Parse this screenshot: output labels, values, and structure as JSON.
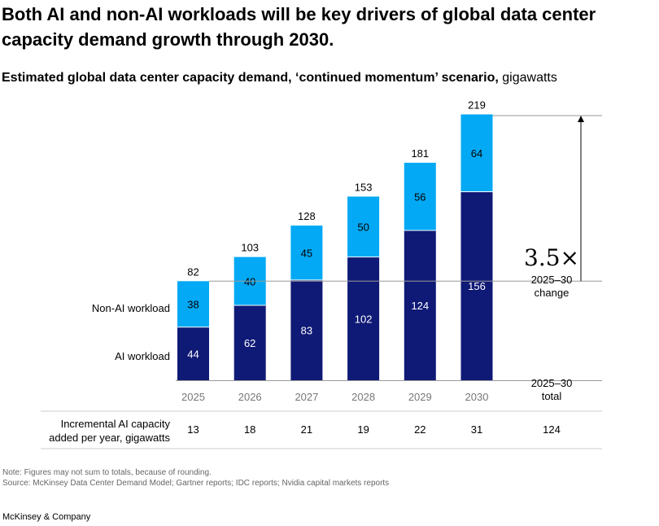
{
  "headline": "Both AI and non-AI workloads will be key drivers of global data center capacity demand growth through 2030.",
  "subtitle": {
    "main": "Estimated global data center capacity demand, ‘continued momentum’ scenario,",
    "unit": " gigawatts"
  },
  "chart_data": {
    "type": "bar",
    "stacked": true,
    "categories": [
      "2025",
      "2026",
      "2027",
      "2028",
      "2029",
      "2030"
    ],
    "series": [
      {
        "name": "AI workload",
        "values": [
          44,
          62,
          83,
          102,
          124,
          156
        ],
        "color": "#0f1a76"
      },
      {
        "name": "Non-AI workload",
        "values": [
          38,
          40,
          45,
          50,
          56,
          64
        ],
        "color": "#03a9f4"
      }
    ],
    "totals": [
      82,
      103,
      128,
      153,
      181,
      219
    ],
    "ylim": [
      0,
      219
    ],
    "annotation": {
      "multiplier": "3.5×",
      "label": [
        "2025–30",
        "change"
      ]
    },
    "total_column": {
      "header": [
        "2025–30",
        "total"
      ],
      "value": "124"
    },
    "incremental": {
      "label": [
        "Incremental AI capacity",
        "added per year, gigawatts"
      ],
      "values": [
        13,
        18,
        21,
        19,
        22,
        31
      ]
    }
  },
  "footnote": {
    "note": "Note: Figures may not sum to totals, because of rounding.",
    "source": "Source: McKinsey Data Center Demand Model; Gartner reports; IDC reports; Nvidia capital markets reports"
  },
  "brand": "McKinsey & Company"
}
